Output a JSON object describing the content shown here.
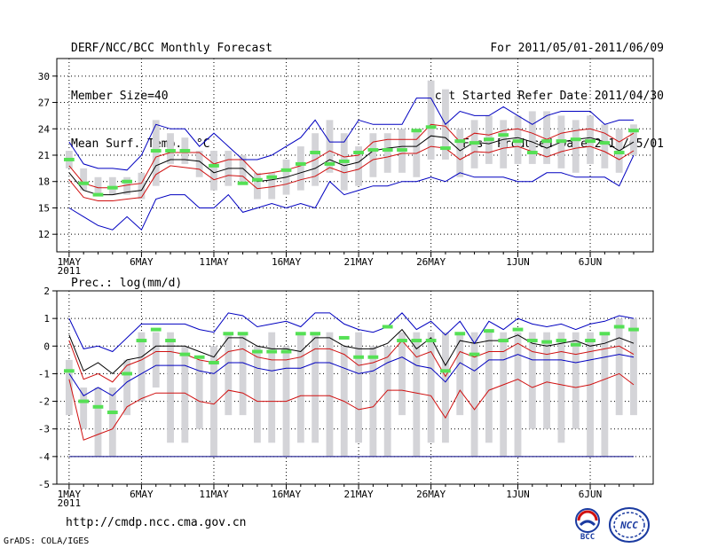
{
  "header": {
    "left": [
      "DERF/NCC/BCC Monthly Forecast",
      "Member Size=40",
      "Mean Surf. Temp.: °C"
    ],
    "right": [
      "For 2011/05/01-2011/06/09",
      "Fcst Started Refer Date 2011/04/30",
      "Fcst Produced Date 2011/05/01"
    ]
  },
  "footer": {
    "url": "http://cmdp.ncc.cma.gov.cn",
    "credit": "GrADS: COLA/IGES",
    "logo_bcc": "BCC",
    "logo_ncc": "NCC"
  },
  "colors": {
    "box": "#d4d4d8",
    "green": "#55e055",
    "ensemble_mean": "#000000",
    "inner_band": "#d01010",
    "outer_band": "#0000c0",
    "min_line": "#000080",
    "grid": "#000000"
  },
  "chart_data": [
    {
      "type": "line",
      "title": "Mean Surf. Temp.: °C",
      "ylabel": "°C",
      "ylim": [
        10,
        32
      ],
      "yticks": [
        12,
        15,
        18,
        21,
        24,
        27,
        30
      ],
      "day_count": 40,
      "xtick_days": [
        1,
        6,
        11,
        16,
        21,
        26,
        32,
        37
      ],
      "xtick_labels": [
        "1MAY",
        "6MAY",
        "11MAY",
        "16MAY",
        "21MAY",
        "26MAY",
        "1JUN",
        "6JUN"
      ],
      "year_label": "2011",
      "boxes_low": [
        19.5,
        17.0,
        16.5,
        16.5,
        16.5,
        16.0,
        17.5,
        20.0,
        20.0,
        18.5,
        17.0,
        17.5,
        18.0,
        16.0,
        16.0,
        16.5,
        17.0,
        17.5,
        19.0,
        17.0,
        17.5,
        18.5,
        19.0,
        19.0,
        18.5,
        20.5,
        20.5,
        18.5,
        19.5,
        20.0,
        19.5,
        20.0,
        20.0,
        20.0,
        19.5,
        19.0,
        20.0,
        19.5,
        19.0,
        21.0
      ],
      "boxes_high": [
        21.5,
        19.5,
        18.5,
        18.5,
        18.5,
        19.0,
        25.0,
        23.5,
        23.0,
        21.5,
        21.5,
        21.5,
        21.0,
        19.0,
        19.0,
        20.5,
        22.0,
        23.5,
        25.0,
        23.5,
        22.0,
        23.5,
        23.5,
        24.0,
        24.0,
        29.5,
        28.5,
        24.0,
        25.0,
        25.5,
        25.0,
        25.5,
        26.0,
        26.0,
        25.5,
        25.0,
        25.5,
        24.5,
        24.0,
        24.5
      ],
      "green_marks": [
        20.5,
        17.8,
        16.5,
        17.3,
        18.0,
        null,
        21.5,
        21.5,
        21.5,
        null,
        19.8,
        null,
        17.8,
        18.2,
        18.5,
        19.3,
        20.0,
        21.3,
        20.0,
        20.3,
        21.3,
        21.6,
        21.6,
        21.6,
        23.8,
        24.2,
        21.8,
        22.6,
        22.4,
        22.8,
        23.3,
        22.6,
        21.3,
        22.6,
        22.6,
        22.8,
        22.6,
        22.4,
        21.3,
        23.8
      ],
      "series": [
        {
          "name": "ensemble mean",
          "role": "ensemble_mean",
          "values": [
            19.0,
            17.0,
            16.5,
            16.5,
            16.8,
            17.0,
            19.8,
            20.5,
            20.5,
            20.3,
            19.0,
            19.5,
            19.5,
            18.0,
            18.2,
            18.5,
            19.0,
            19.5,
            20.5,
            19.8,
            20.2,
            21.5,
            21.8,
            22.0,
            22.0,
            23.2,
            23.0,
            21.5,
            22.5,
            22.3,
            22.8,
            23.0,
            22.5,
            21.8,
            22.5,
            22.8,
            23.0,
            22.5,
            21.5,
            22.5
          ]
        },
        {
          "name": "inner upper",
          "role": "inner_band",
          "values": [
            19.8,
            17.8,
            17.3,
            17.3,
            17.6,
            17.8,
            20.8,
            21.3,
            21.3,
            21.3,
            20.0,
            20.5,
            20.5,
            18.8,
            19.0,
            19.3,
            19.8,
            20.5,
            21.5,
            20.8,
            21.0,
            22.5,
            22.8,
            22.8,
            22.8,
            24.5,
            24.3,
            22.5,
            23.5,
            23.3,
            23.8,
            24.0,
            23.5,
            22.8,
            23.5,
            23.8,
            24.0,
            23.5,
            22.5,
            23.5
          ]
        },
        {
          "name": "inner lower",
          "role": "inner_band",
          "values": [
            18.2,
            16.2,
            15.8,
            15.8,
            16.0,
            16.2,
            18.8,
            19.8,
            19.6,
            19.4,
            18.2,
            18.7,
            18.6,
            17.2,
            17.4,
            17.7,
            18.2,
            18.6,
            19.6,
            19.0,
            19.4,
            20.5,
            20.8,
            21.2,
            21.2,
            22.0,
            21.8,
            20.5,
            21.4,
            21.3,
            21.8,
            22.0,
            21.4,
            20.8,
            21.4,
            21.8,
            22.0,
            21.4,
            20.5,
            21.5
          ]
        },
        {
          "name": "outer upper",
          "role": "outer_band",
          "values": [
            22.5,
            20.0,
            19.5,
            19.5,
            19.3,
            21.0,
            24.5,
            24.0,
            24.0,
            22.0,
            23.5,
            22.0,
            20.5,
            20.5,
            21.0,
            22.0,
            23.0,
            25.0,
            22.5,
            22.5,
            25.0,
            24.5,
            24.5,
            24.5,
            27.5,
            27.5,
            24.5,
            26.0,
            25.5,
            25.5,
            26.5,
            25.5,
            24.5,
            25.5,
            26.0,
            26.0,
            26.0,
            24.5,
            25.0,
            25.0
          ]
        },
        {
          "name": "outer lower",
          "role": "outer_band",
          "values": [
            15.0,
            14.0,
            13.0,
            12.5,
            14.0,
            12.5,
            16.0,
            16.5,
            16.5,
            15.0,
            15.0,
            16.5,
            14.5,
            15.0,
            15.5,
            15.0,
            15.5,
            15.0,
            18.0,
            16.5,
            17.0,
            17.5,
            17.5,
            18.0,
            18.0,
            18.5,
            18.0,
            19.0,
            18.5,
            18.5,
            18.5,
            18.0,
            18.0,
            19.0,
            19.0,
            18.5,
            18.5,
            18.5,
            17.5,
            21.0
          ]
        }
      ]
    },
    {
      "type": "line",
      "title": "Prec.: log(mm/d)",
      "ylabel": "log(mm/d)",
      "ylim": [
        -5,
        2
      ],
      "yticks": [
        -5,
        -4,
        -3,
        -2,
        -1,
        0,
        1,
        2
      ],
      "day_count": 40,
      "xtick_days": [
        1,
        6,
        11,
        16,
        21,
        26,
        32,
        37
      ],
      "xtick_labels": [
        "1MAY",
        "6MAY",
        "11MAY",
        "16MAY",
        "21MAY",
        "26MAY",
        "1JUN",
        "6JUN"
      ],
      "year_label": "2011",
      "boxes_low": [
        -2.5,
        -3.0,
        -4.0,
        -4.0,
        -2.5,
        -2.0,
        -1.5,
        -3.5,
        -3.5,
        -3.0,
        -4.0,
        -2.5,
        -2.5,
        -3.5,
        -3.5,
        -4.0,
        -3.5,
        -3.5,
        -4.0,
        -4.0,
        -3.5,
        -4.0,
        -4.0,
        -2.5,
        -4.0,
        -3.5,
        -3.5,
        -2.5,
        -4.0,
        -3.5,
        -4.0,
        -4.0,
        -3.0,
        -3.0,
        -3.5,
        -3.0,
        -4.0,
        -4.0,
        -2.5,
        -2.5
      ],
      "boxes_high": [
        -0.5,
        -1.5,
        -1.5,
        -1.5,
        -0.5,
        0.5,
        0.5,
        0.5,
        0.0,
        -0.5,
        0.0,
        0.5,
        0.5,
        0.0,
        0.5,
        0.0,
        0.5,
        0.5,
        0.5,
        0.0,
        0.5,
        0.0,
        0.0,
        0.5,
        0.5,
        0.5,
        0.5,
        0.5,
        0.5,
        0.5,
        0.5,
        0.5,
        0.5,
        0.5,
        0.5,
        0.5,
        0.5,
        0.5,
        1.0,
        1.0
      ],
      "green_marks": [
        -0.9,
        -2.0,
        -2.2,
        -2.4,
        -1.0,
        0.2,
        0.6,
        0.2,
        -0.3,
        -0.4,
        -0.6,
        0.45,
        0.45,
        -0.2,
        -0.2,
        -0.2,
        0.45,
        0.45,
        null,
        0.3,
        -0.4,
        -0.4,
        0.7,
        0.2,
        0.2,
        0.2,
        -0.9,
        0.45,
        -0.3,
        0.55,
        0.2,
        0.6,
        0.2,
        0.15,
        0.2,
        0.05,
        0.2,
        0.45,
        0.7,
        0.6
      ],
      "series": [
        {
          "name": "ensemble mean",
          "role": "ensemble_mean",
          "values": [
            0.4,
            -0.9,
            -0.6,
            -1.0,
            -0.5,
            -0.4,
            0.0,
            0.0,
            0.0,
            -0.2,
            -0.4,
            0.3,
            0.3,
            0.0,
            -0.1,
            -0.1,
            -0.2,
            0.3,
            0.3,
            0.0,
            -0.1,
            -0.1,
            0.1,
            0.6,
            -0.1,
            0.3,
            -0.7,
            0.2,
            0.1,
            0.2,
            0.2,
            0.4,
            0.1,
            0.0,
            0.1,
            0.2,
            0.0,
            0.1,
            0.3,
            0.1
          ]
        },
        {
          "name": "inner upper",
          "role": "inner_band",
          "values": [
            0.2,
            -1.2,
            -1.0,
            -1.3,
            -0.7,
            -0.5,
            -0.2,
            -0.2,
            -0.3,
            -0.5,
            -0.6,
            -0.2,
            -0.1,
            -0.4,
            -0.5,
            -0.5,
            -0.4,
            -0.1,
            -0.1,
            -0.3,
            -0.7,
            -0.6,
            -0.4,
            0.2,
            -0.4,
            -0.2,
            -1.1,
            -0.2,
            -0.4,
            -0.2,
            -0.2,
            0.1,
            -0.2,
            -0.3,
            -0.2,
            -0.3,
            -0.2,
            -0.1,
            0.0,
            -0.3
          ]
        },
        {
          "name": "inner lower",
          "role": "inner_band",
          "values": [
            -1.2,
            -3.4,
            -3.2,
            -3.0,
            -2.2,
            -1.9,
            -1.7,
            -1.7,
            -1.7,
            -2.0,
            -2.1,
            -1.6,
            -1.7,
            -2.0,
            -2.0,
            -2.0,
            -1.8,
            -1.8,
            -1.8,
            -2.0,
            -2.3,
            -2.2,
            -1.6,
            -1.6,
            -1.7,
            -1.8,
            -2.6,
            -1.6,
            -2.3,
            -1.6,
            -1.4,
            -1.2,
            -1.5,
            -1.3,
            -1.4,
            -1.5,
            -1.4,
            -1.2,
            -1.0,
            -1.4
          ]
        },
        {
          "name": "outer upper",
          "role": "outer_band",
          "values": [
            1.0,
            -0.1,
            0.0,
            -0.2,
            0.3,
            0.8,
            0.8,
            0.8,
            0.8,
            0.6,
            0.5,
            1.2,
            1.1,
            0.7,
            0.8,
            0.9,
            0.7,
            1.2,
            1.2,
            0.8,
            0.6,
            0.5,
            0.7,
            1.2,
            0.6,
            0.9,
            0.4,
            0.9,
            0.1,
            0.9,
            0.6,
            1.0,
            0.8,
            0.7,
            0.8,
            0.6,
            0.8,
            0.9,
            1.1,
            1.0
          ]
        },
        {
          "name": "outer lower",
          "role": "outer_band",
          "values": [
            -1.0,
            -1.8,
            -1.5,
            -1.8,
            -1.3,
            -1.0,
            -0.7,
            -0.7,
            -0.7,
            -0.9,
            -1.0,
            -0.6,
            -0.6,
            -0.8,
            -0.9,
            -0.8,
            -0.8,
            -0.6,
            -0.6,
            -0.8,
            -1.0,
            -0.9,
            -0.6,
            -0.4,
            -0.7,
            -0.8,
            -1.3,
            -0.6,
            -0.9,
            -0.5,
            -0.5,
            -0.3,
            -0.5,
            -0.5,
            -0.5,
            -0.6,
            -0.5,
            -0.4,
            -0.3,
            -0.4
          ]
        },
        {
          "name": "minimum",
          "role": "min_line",
          "values": [
            -4.0,
            -4.0,
            -4.0,
            -4.0,
            -4.0,
            -4.0,
            -4.0,
            -4.0,
            -4.0,
            -4.0,
            -4.0,
            -4.0,
            -4.0,
            -4.0,
            -4.0,
            -4.0,
            -4.0,
            -4.0,
            -4.0,
            -4.0,
            -4.0,
            -4.0,
            -4.0,
            -4.0,
            -4.0,
            -4.0,
            -4.0,
            -4.0,
            -4.0,
            -4.0,
            -4.0,
            -4.0,
            -4.0,
            -4.0,
            -4.0,
            -4.0,
            -4.0,
            -4.0,
            -4.0,
            -4.0
          ]
        }
      ]
    }
  ]
}
